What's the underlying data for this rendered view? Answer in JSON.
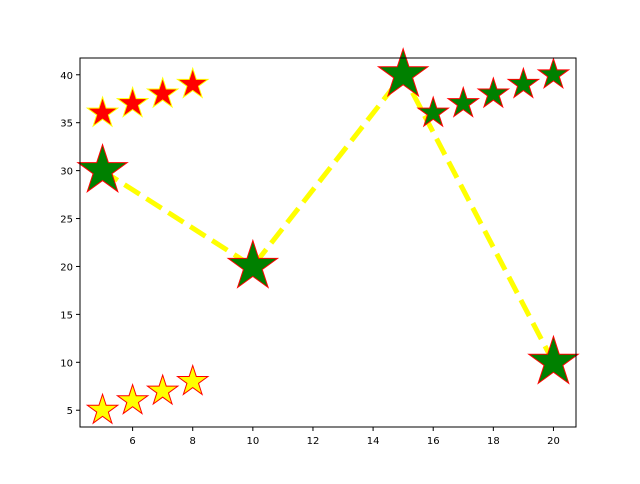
{
  "chart_data": {
    "type": "scatter",
    "title": "",
    "xlabel": "",
    "ylabel": "",
    "xlim": [
      4.25,
      20.75
    ],
    "ylim": [
      3.25,
      41.75
    ],
    "xticks": [
      6,
      8,
      10,
      12,
      14,
      16,
      18,
      20
    ],
    "yticks": [
      5,
      10,
      15,
      20,
      25,
      30,
      35,
      40
    ],
    "grid": false,
    "legend": "none",
    "series": [
      {
        "name": "dashed line with large stars",
        "style": "line-dashed-with-star-markers",
        "line_color": "#ffff00",
        "marker": "star",
        "marker_size": "large",
        "marker_face": "#008000",
        "marker_edge": "#ff0000",
        "x": [
          5,
          10,
          15,
          20
        ],
        "y": [
          30,
          20,
          40,
          10
        ]
      },
      {
        "name": "red stars",
        "style": "markers",
        "marker": "star",
        "marker_size": "medium",
        "marker_face": "#ff0000",
        "marker_edge": "#ffff00",
        "x": [
          5,
          6,
          7,
          8
        ],
        "y": [
          36,
          37,
          38,
          39
        ]
      },
      {
        "name": "yellow stars",
        "style": "markers",
        "marker": "star",
        "marker_size": "medium",
        "marker_face": "#ffff00",
        "marker_edge": "#ff0000",
        "x": [
          5,
          6,
          7,
          8
        ],
        "y": [
          5,
          6,
          7,
          8
        ]
      },
      {
        "name": "green stars",
        "style": "markers",
        "marker": "star",
        "marker_size": "medium",
        "marker_face": "#008000",
        "marker_edge": "#ff0000",
        "x": [
          16,
          17,
          18,
          19,
          20
        ],
        "y": [
          36,
          37,
          38,
          39,
          40
        ]
      }
    ]
  }
}
